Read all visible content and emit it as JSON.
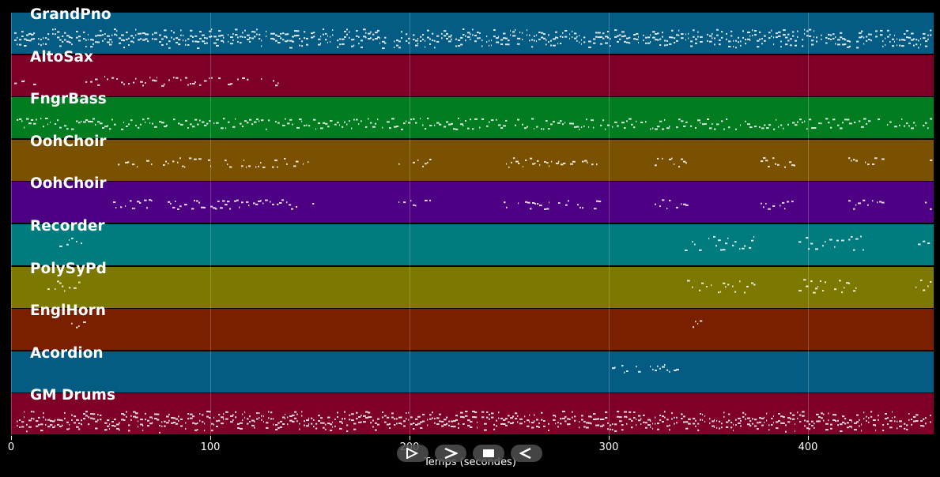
{
  "tracks": [
    {
      "name": "GrandPno",
      "color": "#045b84",
      "pattern": "dense"
    },
    {
      "name": "AltoSax",
      "color": "#7e0028",
      "pattern": "early"
    },
    {
      "name": "FngrBass",
      "color": "#027c20",
      "pattern": "steady"
    },
    {
      "name": "OohChoir",
      "color": "#7a5100",
      "pattern": "phrases"
    },
    {
      "name": "OohChoir",
      "color": "#4e0084",
      "pattern": "phrases"
    },
    {
      "name": "Recorder",
      "color": "#007c7e",
      "pattern": "late"
    },
    {
      "name": "PolySyPd",
      "color": "#7c7800",
      "pattern": "late"
    },
    {
      "name": "EnglHorn",
      "color": "#7a2000",
      "pattern": "sparse"
    },
    {
      "name": "Acordion",
      "color": "#045b84",
      "pattern": "mid"
    },
    {
      "name": "GM Drums",
      "color": "#7e0028",
      "pattern": "drums"
    }
  ],
  "x_axis": {
    "ticks": [
      "0",
      "100",
      "200",
      "300",
      "400"
    ],
    "title": "Temps (secondes)",
    "max_seconds": 463
  },
  "controls": [
    {
      "name": "play-icon",
      "glyph": "play"
    },
    {
      "name": "forward-icon",
      "glyph": "forward"
    },
    {
      "name": "stop-icon",
      "glyph": "stop"
    },
    {
      "name": "rewind-icon",
      "glyph": "rewind"
    }
  ]
}
